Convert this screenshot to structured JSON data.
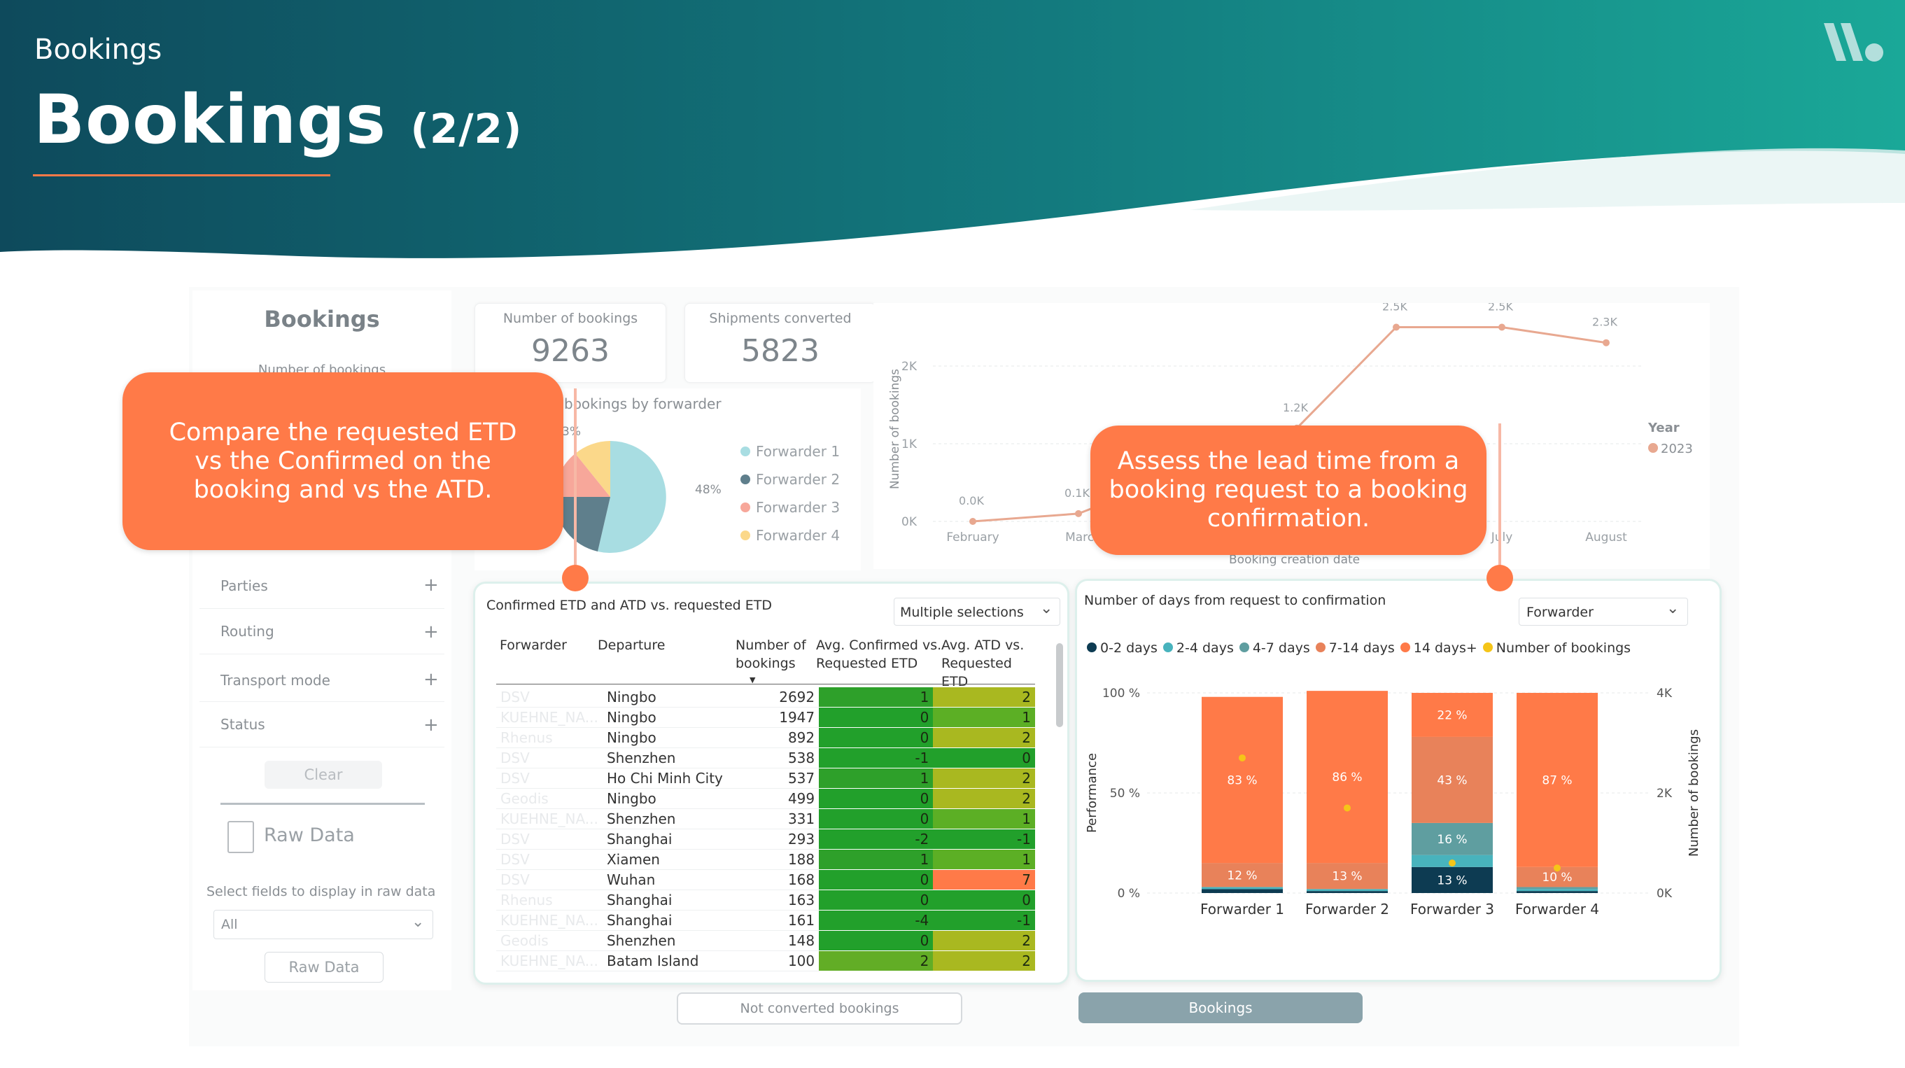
{
  "header": {
    "section": "Bookings",
    "title": "Bookings",
    "page_indicator": "(2/2)"
  },
  "sidebar": {
    "title": "Bookings",
    "subtitle": "Number of bookings",
    "filters": [
      {
        "label": "Parties"
      },
      {
        "label": "Routing"
      },
      {
        "label": "Transport mode"
      },
      {
        "label": "Status"
      }
    ],
    "clear_label": "Clear",
    "raw_data_heading": "Raw Data",
    "select_fields_label": "Select fields to display in raw data",
    "select_value": "All",
    "raw_data_button": "Raw Data"
  },
  "kpis": {
    "bookings_label": "Number of bookings",
    "bookings_value": "9263",
    "converted_label": "Shipments converted",
    "converted_value": "5823"
  },
  "pie": {
    "title": "bookings by forwarder",
    "label_48": "48%",
    "label_partial": "3%",
    "legend": [
      "Forwarder 1",
      "Forwarder 2",
      "Forwarder 3",
      "Forwarder 4"
    ],
    "colors": [
      "#a8dde2",
      "#5f7f8c",
      "#f7a79a",
      "#fbd88a"
    ]
  },
  "line_chart": {
    "y_label": "Number of bookings",
    "x_label": "Booking creation date",
    "y_ticks": [
      "2K",
      "1K",
      "0K"
    ],
    "x_ticks": [
      "February",
      "March",
      "July",
      "August"
    ],
    "data_labels": [
      "0.0K",
      "0.1K",
      "1.2K",
      "2.5K",
      "2.5K",
      "2.3K"
    ],
    "legend_title": "Year",
    "legend_item": "2023"
  },
  "chart_data": [
    {
      "type": "line",
      "title": "",
      "xlabel": "Booking creation date",
      "ylabel": "Number of bookings",
      "categories": [
        "February",
        "March",
        "",
        "",
        "July",
        "August"
      ],
      "series": [
        {
          "name": "2023",
          "values": [
            0.0,
            0.1,
            1.2,
            2.5,
            2.5,
            2.3
          ]
        }
      ],
      "y_unit": "K",
      "ylim": [
        0,
        2.6
      ]
    },
    {
      "type": "bar",
      "title": "Number of days from request to confirmation",
      "ylabel": "Performance",
      "y2label": "Number of bookings",
      "categories": [
        "Forwarder 1",
        "Forwarder 2",
        "Forwarder 3",
        "Forwarder 4"
      ],
      "series": [
        {
          "name": "0-2 days",
          "values": [
            2,
            1,
            13,
            1
          ]
        },
        {
          "name": "2-4 days",
          "values": [
            1,
            1,
            6,
            1
          ]
        },
        {
          "name": "4-7 days",
          "values": [
            0,
            0,
            16,
            1
          ]
        },
        {
          "name": "7-14 days",
          "values": [
            12,
            13,
            43,
            10
          ]
        },
        {
          "name": "14 days+",
          "values": [
            83,
            86,
            22,
            87
          ]
        }
      ],
      "line_series": {
        "name": "Number of bookings",
        "values": [
          2.7,
          1.7,
          0.6,
          0.5
        ]
      },
      "y_ticks": [
        "100 %",
        "50 %",
        "0 %"
      ],
      "y2_ticks": [
        "4K",
        "2K",
        "0K"
      ],
      "bar_labels": [
        [
          "12 %",
          "83 %"
        ],
        [
          "13 %",
          "86 %"
        ],
        [
          "13 %",
          "16 %",
          "43 %",
          "22 %"
        ],
        [
          "10 %",
          "87 %"
        ]
      ]
    }
  ],
  "bar_chart": {
    "title": "Number of days from request to confirmation",
    "dropdown": "Forwarder",
    "legend": [
      "0-2 days",
      "2-4 days",
      "4-7 days",
      "7-14 days",
      "14 days+",
      "Number of bookings"
    ],
    "legend_colors": [
      "#0d3b52",
      "#48b3bd",
      "#5f9ea0",
      "#e8825a",
      "#ff7a48",
      "#f5c518"
    ],
    "y_ticks": [
      "100 %",
      "50 %",
      "0 %"
    ],
    "y2_ticks": [
      "4K",
      "2K",
      "0K"
    ],
    "y_label": "Performance",
    "y2_label": "Number of bookings",
    "categories": [
      "Forwarder 1",
      "Forwarder 2",
      "Forwarder 3",
      "Forwarder 4"
    ]
  },
  "table": {
    "title": "Confirmed ETD and ATD vs. requested ETD",
    "dropdown": "Multiple selections",
    "headers": [
      "Forwarder",
      "Departure",
      "Number of bookings",
      "Avg. Confirmed vs. Requested ETD",
      "Avg. ATD vs. Requested ETD"
    ],
    "header_lines": [
      [
        "Forwarder"
      ],
      [
        "Departure"
      ],
      [
        "Number of",
        "bookings"
      ],
      [
        "Avg. Confirmed vs.",
        "Requested ETD"
      ],
      [
        "Avg. ATD vs.",
        "Requested ETD"
      ]
    ],
    "rows": [
      [
        "DSV",
        "Ningbo",
        "2692",
        "1",
        "2"
      ],
      [
        "KUEHNE_NA...",
        "Ningbo",
        "1947",
        "0",
        "1"
      ],
      [
        "Rhenus",
        "Ningbo",
        "892",
        "0",
        "2"
      ],
      [
        "DSV",
        "Shenzhen",
        "538",
        "-1",
        "0"
      ],
      [
        "DSV",
        "Ho Chi Minh City",
        "537",
        "1",
        "2"
      ],
      [
        "Geodis",
        "Ningbo",
        "499",
        "0",
        "2"
      ],
      [
        "KUEHNE_NA...",
        "Shenzhen",
        "331",
        "0",
        "1"
      ],
      [
        "DSV",
        "Shanghai",
        "293",
        "-2",
        "-1"
      ],
      [
        "DSV",
        "Xiamen",
        "188",
        "1",
        "1"
      ],
      [
        "DSV",
        "Wuhan",
        "168",
        "0",
        "7"
      ],
      [
        "Rhenus",
        "Shanghai",
        "163",
        "0",
        "0"
      ],
      [
        "KUEHNE_NA...",
        "Shanghai",
        "161",
        "-4",
        "-1"
      ],
      [
        "Geodis",
        "Shenzhen",
        "148",
        "0",
        "2"
      ],
      [
        "KUEHNE_NA...",
        "Batam Island",
        "100",
        "2",
        "2"
      ]
    ],
    "atd_colors": [
      "#a9b820",
      "#5caf25",
      "#a9b820",
      "#22a02b",
      "#a9b820",
      "#a9b820",
      "#5caf25",
      "#22a02b",
      "#5caf25",
      "#ff7a48",
      "#22a02b",
      "#22a02b",
      "#a9b820",
      "#a9b820"
    ],
    "confirmed_colors": [
      "#2ea02a",
      "#22a02b",
      "#22a02b",
      "#22a02b",
      "#2ea02a",
      "#22a02b",
      "#22a02b",
      "#22a02b",
      "#2ea02a",
      "#22a02b",
      "#22a02b",
      "#22a02b",
      "#22a02b",
      "#62ad26"
    ]
  },
  "bottom_buttons": {
    "not_converted": "Not converted bookings",
    "bookings": "Bookings"
  },
  "callouts": {
    "left": "Compare the requested ETD vs the Confirmed on the booking and vs the ATD.",
    "right": "Assess the lead time from a booking request to a booking confirmation."
  },
  "colors": {
    "header_dark": "#0e4a5c",
    "header_teal": "#1aa898",
    "accent": "#ff7a48"
  }
}
